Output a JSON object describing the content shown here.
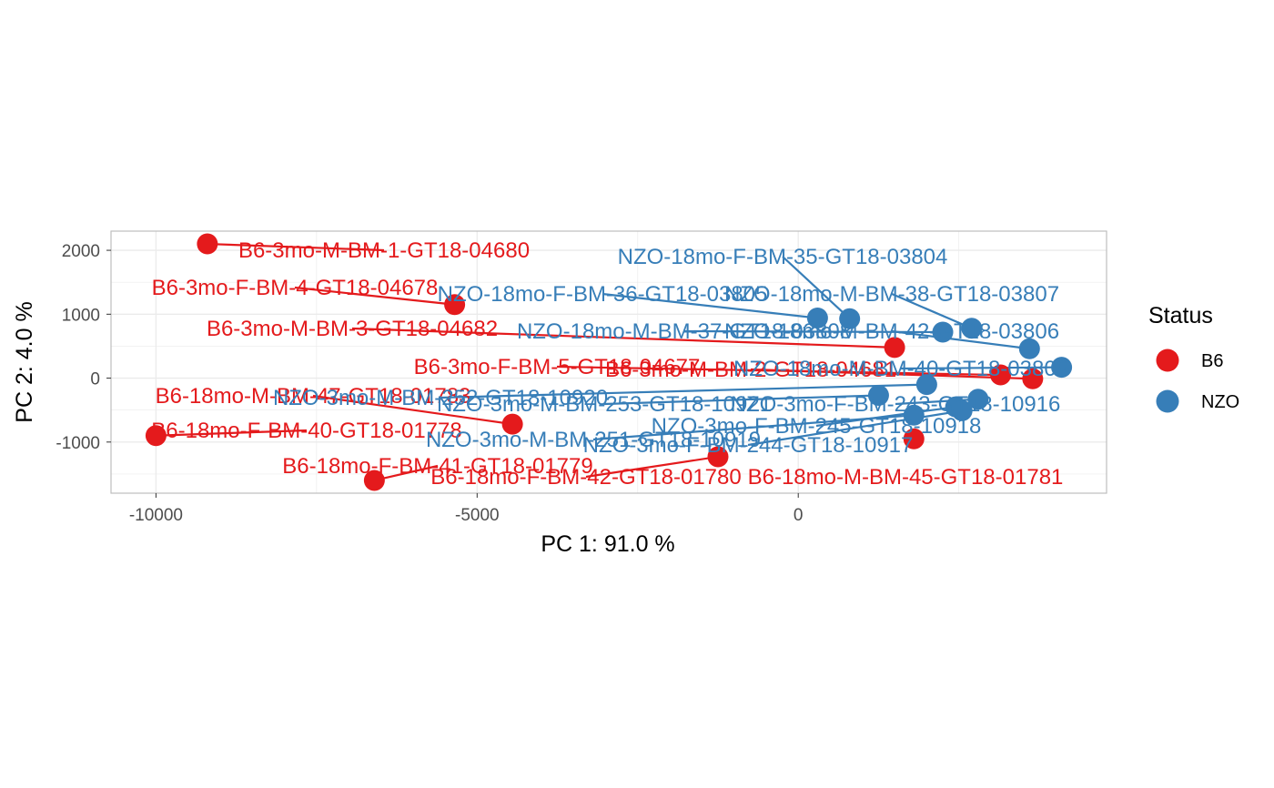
{
  "chart_data": {
    "type": "scatter",
    "xlabel": "PC 1: 91.0 %",
    "ylabel": "PC 2: 4.0 %",
    "xlim": [
      -10700,
      4800
    ],
    "ylim": [
      -1800,
      2300
    ],
    "x_ticks": [
      -10000,
      -5000,
      0
    ],
    "y_ticks": [
      2000,
      1000,
      0,
      -1000
    ],
    "grid": true,
    "legend": {
      "title": "Status",
      "position": "right",
      "entries": [
        {
          "name": "B6",
          "color": "#E41A1C"
        },
        {
          "name": "NZO",
          "color": "#377EB8"
        }
      ]
    },
    "series": [
      {
        "name": "B6",
        "color": "#E41A1C",
        "points": [
          {
            "x": -9200,
            "y": 2100,
            "label": "B6-3mo-M-BM-1-GT18-04680"
          },
          {
            "x": -5350,
            "y": 1150,
            "label": "B6-3mo-F-BM-4-GT18-04678"
          },
          {
            "x": 1500,
            "y": 480,
            "label": "B6-3mo-M-BM-3-GT18-04682"
          },
          {
            "x": 3150,
            "y": 50,
            "label": "B6-3mo-F-BM-5-GT18-04677"
          },
          {
            "x": 3650,
            "y": -10,
            "label": "B6-3mo-M-BM-2-GT18-04681"
          },
          {
            "x": -4450,
            "y": -720,
            "label": "B6-18mo-M-BM-47-GT18-01783"
          },
          {
            "x": -10000,
            "y": -900,
            "label": "B6-18mo-F-BM-40-GT18-01778"
          },
          {
            "x": -6600,
            "y": -1600,
            "label": "B6-18mo-F-BM-41-GT18-01779"
          },
          {
            "x": -1250,
            "y": -1230,
            "label": "B6-18mo-F-BM-42-GT18-01780"
          },
          {
            "x": 1800,
            "y": -950,
            "label": "B6-18mo-M-BM-45-GT18-01781"
          }
        ]
      },
      {
        "name": "NZO",
        "color": "#377EB8",
        "points": [
          {
            "x": 800,
            "y": 930,
            "label": "NZO-18mo-F-BM-35-GT18-03804"
          },
          {
            "x": 300,
            "y": 940,
            "label": "NZO-18mo-F-BM-36-GT18-03805"
          },
          {
            "x": 2700,
            "y": 780,
            "label": "NZO-18mo-M-BM-38-GT18-03807"
          },
          {
            "x": 2250,
            "y": 720,
            "label": "NZO-18mo-M-BM-37-GT18-03808"
          },
          {
            "x": 3600,
            "y": 460,
            "label": "NZO-18mo-M-BM-42-GT18-03806"
          },
          {
            "x": 4100,
            "y": 170,
            "label": "NZO-18mo-M-BM-40-GT18-03809"
          },
          {
            "x": 2000,
            "y": -100,
            "label": "NZO-3mo-M-BM-252-GT18-10920"
          },
          {
            "x": 1250,
            "y": -270,
            "label": "NZO-3mo-M-BM-253-GT18-10921"
          },
          {
            "x": 2800,
            "y": -330,
            "label": "NZO-3mo-F-BM-243-GT18-10916"
          },
          {
            "x": 2450,
            "y": -450,
            "label": "NZO-3mo-F-BM-245-GT18-10918"
          },
          {
            "x": 1800,
            "y": -580,
            "label": "NZO-3mo-M-BM-251-GT18-10919"
          },
          {
            "x": 2550,
            "y": -510,
            "label": "NZO-3mo-F-BM-244-GT18-10917"
          }
        ]
      }
    ]
  }
}
